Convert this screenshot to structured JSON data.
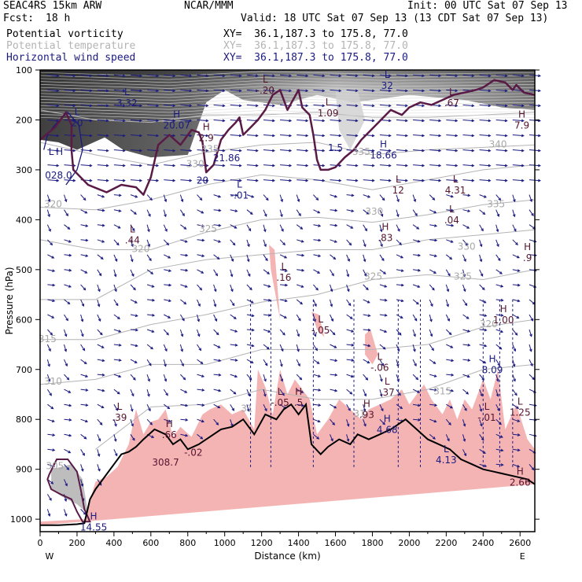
{
  "header": {
    "model": "SEAC4RS 15km ARW",
    "org": "NCAR/MMM",
    "init": "Init: 00 UTC Sat 07 Sep 13",
    "fcst_label": "Fcst:",
    "fcst_value": "18 h",
    "valid": "Valid: 18 UTC Sat 07 Sep 13 (13 CDT Sat 07 Sep 13)"
  },
  "legend": [
    {
      "name": "Potential vorticity",
      "xy": "XY=  36.1,187.3 to 175.8, 77.0",
      "color": "#000000"
    },
    {
      "name": "Potential temperature",
      "xy": "XY=  36.1,187.3 to 175.8, 77.0",
      "color": "#b4b4b4"
    },
    {
      "name": "Horizontal wind speed",
      "xy": "XY=  36.1,187.3 to 175.8, 77.0",
      "color": "#1a1a80"
    }
  ],
  "chart_data": {
    "type": "cross-section",
    "xlabel": "Distance (km)",
    "ylabel": "Pressure (hPa)",
    "x_ticks": [
      0,
      200,
      400,
      600,
      800,
      1000,
      1200,
      1400,
      1600,
      1800,
      2000,
      2200,
      2400,
      2600
    ],
    "y_ticks": [
      100,
      200,
      300,
      400,
      500,
      600,
      700,
      800,
      900,
      1000
    ],
    "xlim": [
      0,
      2680
    ],
    "ylim": [
      1025,
      100
    ],
    "x_end_labels": [
      "W",
      "E"
    ],
    "colors": {
      "pv_contour": "#5a1a46",
      "theta": "#b4b4b4",
      "wind": "#1a1a80",
      "shade_pink": "#f5b4b4",
      "terrain": "#000000"
    },
    "theta_labels": [
      {
        "value": "320",
        "x": 70,
        "p": 375
      },
      {
        "value": "315",
        "x": 40,
        "p": 645
      },
      {
        "value": "310",
        "x": 70,
        "p": 730
      },
      {
        "value": "305",
        "x": 80,
        "p": 900
      },
      {
        "value": "320",
        "x": 545,
        "p": 465
      },
      {
        "value": "325",
        "x": 910,
        "p": 425
      },
      {
        "value": "330",
        "x": 840,
        "p": 295
      },
      {
        "value": "335",
        "x": 920,
        "p": 265
      },
      {
        "value": "330",
        "x": 1810,
        "p": 390
      },
      {
        "value": "335",
        "x": 1740,
        "p": 270
      },
      {
        "value": "340",
        "x": 2480,
        "p": 255
      },
      {
        "value": "335",
        "x": 2470,
        "p": 375
      },
      {
        "value": "330",
        "x": 2310,
        "p": 460
      },
      {
        "value": "325",
        "x": 2290,
        "p": 520
      },
      {
        "value": "320",
        "x": 2430,
        "p": 615
      },
      {
        "value": "325",
        "x": 1805,
        "p": 520
      },
      {
        "value": "315",
        "x": 2180,
        "p": 750
      },
      {
        "value": "31",
        "x": 1120,
        "p": 785
      },
      {
        "value": "31",
        "x": 1730,
        "p": 795
      }
    ],
    "extrema": [
      {
        "kind": "L",
        "value": "3.32",
        "x": 470,
        "p": 160,
        "series": "wind"
      },
      {
        "kind": "L",
        "value": "20",
        "x": 200,
        "p": 200,
        "series": "wind"
      },
      {
        "kind": "L",
        "value": "",
        "x": 60,
        "p": 280,
        "series": "wind"
      },
      {
        "kind": "H",
        "value": "",
        "x": 105,
        "p": 280,
        "series": "wind"
      },
      {
        "kind": "",
        "value": "028.0",
        "x": 100,
        "p": 305,
        "series": "wind"
      },
      {
        "kind": "H",
        "value": "20.07",
        "x": 740,
        "p": 205,
        "series": "wind"
      },
      {
        "kind": "H",
        "value": "2.9",
        "x": 900,
        "p": 230,
        "series": "pv"
      },
      {
        "kind": "",
        "value": "21.86",
        "x": 1010,
        "p": 270,
        "series": "wind"
      },
      {
        "kind": "L",
        "value": "-.01",
        "x": 1080,
        "p": 345,
        "series": "wind"
      },
      {
        "kind": "",
        "value": "20",
        "x": 880,
        "p": 315,
        "series": "wind"
      },
      {
        "kind": "L",
        "value": "-.20",
        "x": 1220,
        "p": 135,
        "series": "pv"
      },
      {
        "kind": "L",
        "value": "1.09",
        "x": 1560,
        "p": 180,
        "series": "pv"
      },
      {
        "kind": "L",
        "value": "32",
        "x": 1880,
        "p": 125,
        "series": "wind"
      },
      {
        "kind": "L",
        "value": ".67",
        "x": 2230,
        "p": 160,
        "series": "pv"
      },
      {
        "kind": "H",
        "value": "7.9",
        "x": 2610,
        "p": 205,
        "series": "pv"
      },
      {
        "kind": "",
        "value": "1.5",
        "x": 1600,
        "p": 250,
        "series": "wind"
      },
      {
        "kind": "H",
        "value": "18.66",
        "x": 1860,
        "p": 265,
        "series": "wind"
      },
      {
        "kind": "L",
        "value": "12",
        "x": 1940,
        "p": 335,
        "series": "pv"
      },
      {
        "kind": "L",
        "value": "4.31",
        "x": 2250,
        "p": 335,
        "series": "pv"
      },
      {
        "kind": "L",
        "value": ".04",
        "x": 2230,
        "p": 395,
        "series": "pv"
      },
      {
        "kind": "H",
        "value": ".83",
        "x": 1870,
        "p": 430,
        "series": "pv"
      },
      {
        "kind": "L",
        "value": ".44",
        "x": 500,
        "p": 435,
        "series": "pv"
      },
      {
        "kind": "H",
        "value": ".9",
        "x": 2640,
        "p": 470,
        "series": "pv"
      },
      {
        "kind": "L",
        "value": ".16",
        "x": 1320,
        "p": 510,
        "series": "pv"
      },
      {
        "kind": "H",
        "value": "1.00",
        "x": 2510,
        "p": 595,
        "series": "pv"
      },
      {
        "kind": "L",
        "value": "-.05",
        "x": 1520,
        "p": 615,
        "series": "pv"
      },
      {
        "kind": "L",
        "value": "-.06",
        "x": 1840,
        "p": 690,
        "series": "pv"
      },
      {
        "kind": "H",
        "value": "8.09",
        "x": 2450,
        "p": 695,
        "series": "wind"
      },
      {
        "kind": "L",
        "value": ".37",
        "x": 1880,
        "p": 740,
        "series": "pv"
      },
      {
        "kind": "L",
        "value": "-.05",
        "x": 1300,
        "p": 760,
        "series": "pv"
      },
      {
        "kind": "H",
        "value": ".5",
        "x": 1400,
        "p": 760,
        "series": "pv"
      },
      {
        "kind": "L",
        "value": ".39",
        "x": 430,
        "p": 790,
        "series": "pv"
      },
      {
        "kind": "H",
        "value": ".93",
        "x": 1770,
        "p": 785,
        "series": "pv"
      },
      {
        "kind": "L",
        "value": "1.25",
        "x": 2600,
        "p": 780,
        "series": "pv"
      },
      {
        "kind": "L",
        "value": "-.01",
        "x": 2420,
        "p": 790,
        "series": "pv"
      },
      {
        "kind": "H",
        "value": "4.68",
        "x": 1880,
        "p": 815,
        "series": "wind"
      },
      {
        "kind": "H",
        "value": ".66",
        "x": 700,
        "p": 825,
        "series": "pv"
      },
      {
        "kind": "",
        "value": "-.02",
        "x": 830,
        "p": 860,
        "series": "pv"
      },
      {
        "kind": "",
        "value": "308.7",
        "x": 680,
        "p": 880,
        "series": "pv"
      },
      {
        "kind": "L",
        "value": "4.13",
        "x": 2200,
        "p": 875,
        "series": "wind"
      },
      {
        "kind": "H",
        "value": "2.66",
        "x": 2600,
        "p": 920,
        "series": "pv"
      },
      {
        "kind": "H",
        "value": "14.55",
        "x": 290,
        "p": 1010,
        "series": "wind"
      }
    ],
    "terrain_p": [
      [
        0,
        1012
      ],
      [
        100,
        1012
      ],
      [
        200,
        1010
      ],
      [
        240,
        1008
      ],
      [
        270,
        960
      ],
      [
        300,
        940
      ],
      [
        340,
        920
      ],
      [
        400,
        890
      ],
      [
        440,
        870
      ],
      [
        480,
        865
      ],
      [
        520,
        855
      ],
      [
        560,
        840
      ],
      [
        620,
        820
      ],
      [
        680,
        830
      ],
      [
        720,
        850
      ],
      [
        760,
        840
      ],
      [
        800,
        860
      ],
      [
        860,
        850
      ],
      [
        920,
        835
      ],
      [
        980,
        820
      ],
      [
        1040,
        815
      ],
      [
        1100,
        800
      ],
      [
        1160,
        830
      ],
      [
        1220,
        790
      ],
      [
        1280,
        800
      ],
      [
        1320,
        780
      ],
      [
        1360,
        770
      ],
      [
        1400,
        790
      ],
      [
        1440,
        770
      ],
      [
        1470,
        850
      ],
      [
        1520,
        870
      ],
      [
        1560,
        855
      ],
      [
        1620,
        840
      ],
      [
        1680,
        850
      ],
      [
        1720,
        830
      ],
      [
        1780,
        840
      ],
      [
        1840,
        830
      ],
      [
        1900,
        820
      ],
      [
        1940,
        810
      ],
      [
        1980,
        800
      ],
      [
        2040,
        820
      ],
      [
        2100,
        840
      ],
      [
        2160,
        850
      ],
      [
        2220,
        860
      ],
      [
        2280,
        880
      ],
      [
        2340,
        890
      ],
      [
        2400,
        900
      ],
      [
        2460,
        905
      ],
      [
        2520,
        910
      ],
      [
        2580,
        915
      ],
      [
        2640,
        920
      ],
      [
        2680,
        930
      ]
    ]
  }
}
